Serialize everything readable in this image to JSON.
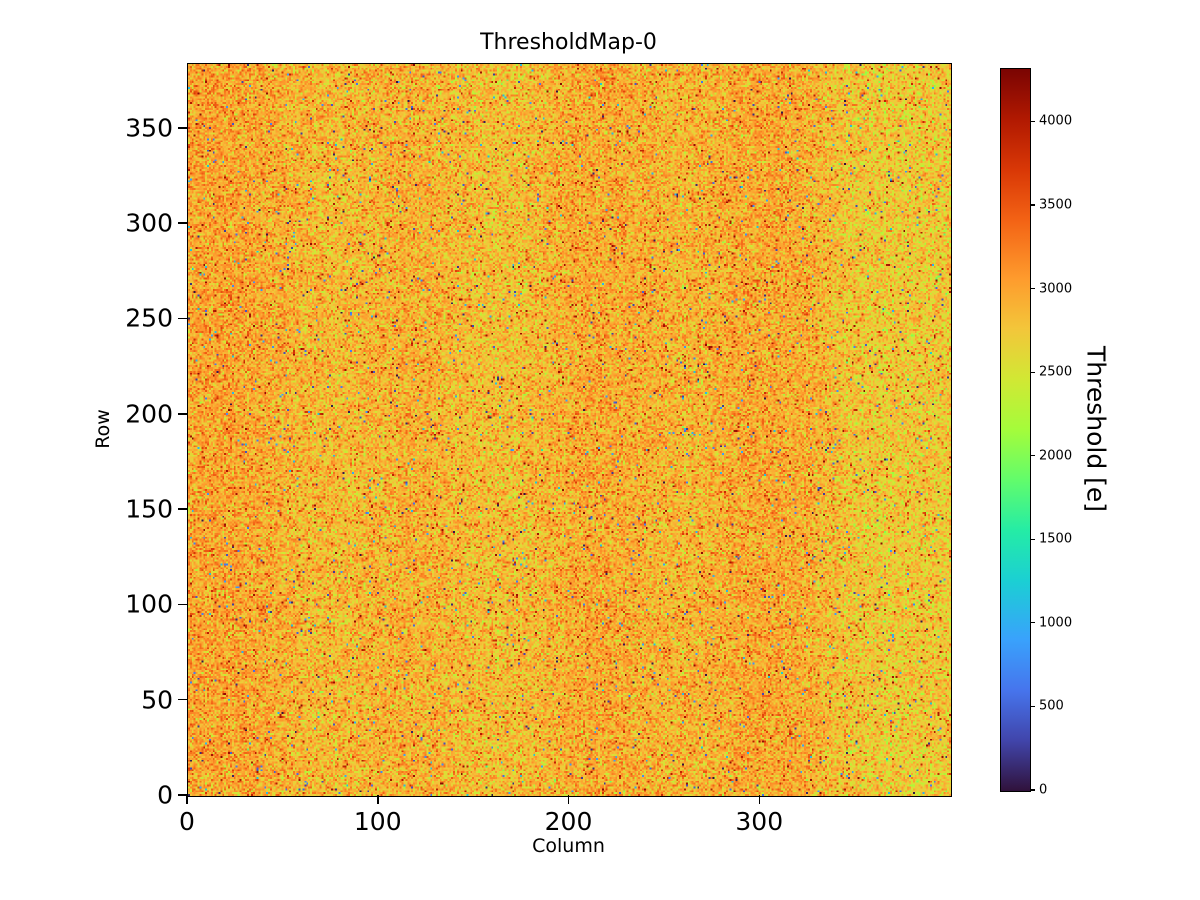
{
  "chart_data": {
    "type": "heatmap",
    "title": "ThresholdMap-0",
    "xlabel": "Column",
    "ylabel": "Row",
    "n_cols": 400,
    "n_rows": 384,
    "x_ticks": [
      0,
      100,
      200,
      300
    ],
    "y_ticks": [
      0,
      50,
      100,
      150,
      200,
      250,
      300,
      350
    ],
    "grid": false,
    "colorbar": {
      "label": "Threshold [e]",
      "ticks": [
        0,
        500,
        1000,
        1500,
        2000,
        2500,
        3000,
        3500,
        4000
      ],
      "vmin": 0,
      "vmax": 4320,
      "colormap": "turbo",
      "stops": [
        [
          0.0,
          "#30123b"
        ],
        [
          0.07,
          "#4145ab"
        ],
        [
          0.14,
          "#4675ed"
        ],
        [
          0.21,
          "#39a2fc"
        ],
        [
          0.29,
          "#1bcfd4"
        ],
        [
          0.36,
          "#24eca6"
        ],
        [
          0.43,
          "#61fc6c"
        ],
        [
          0.5,
          "#a4fc3b"
        ],
        [
          0.57,
          "#d1e834"
        ],
        [
          0.64,
          "#f3c63a"
        ],
        [
          0.71,
          "#fe9b2d"
        ],
        [
          0.79,
          "#f36315"
        ],
        [
          0.86,
          "#d93806"
        ],
        [
          0.93,
          "#b11901"
        ],
        [
          1.0,
          "#7a0402"
        ]
      ]
    },
    "distribution": {
      "description": "per-pixel threshold noise map, mostly yellow-orange with sparse dark (low) and dark-red (high) outlier pixels; slightly greener (lower) values toward right edge",
      "mean_e": 2900,
      "std_e": 265,
      "seed": 7,
      "low_outlier_fraction": 0.012,
      "low_outlier_max": 1200,
      "high_outlier_fraction": 0.02,
      "high_outlier_min": 3400,
      "high_outlier_max": 4250,
      "right_edge_shift_start_col": 320,
      "right_edge_shift_per_col": -2.2
    }
  }
}
